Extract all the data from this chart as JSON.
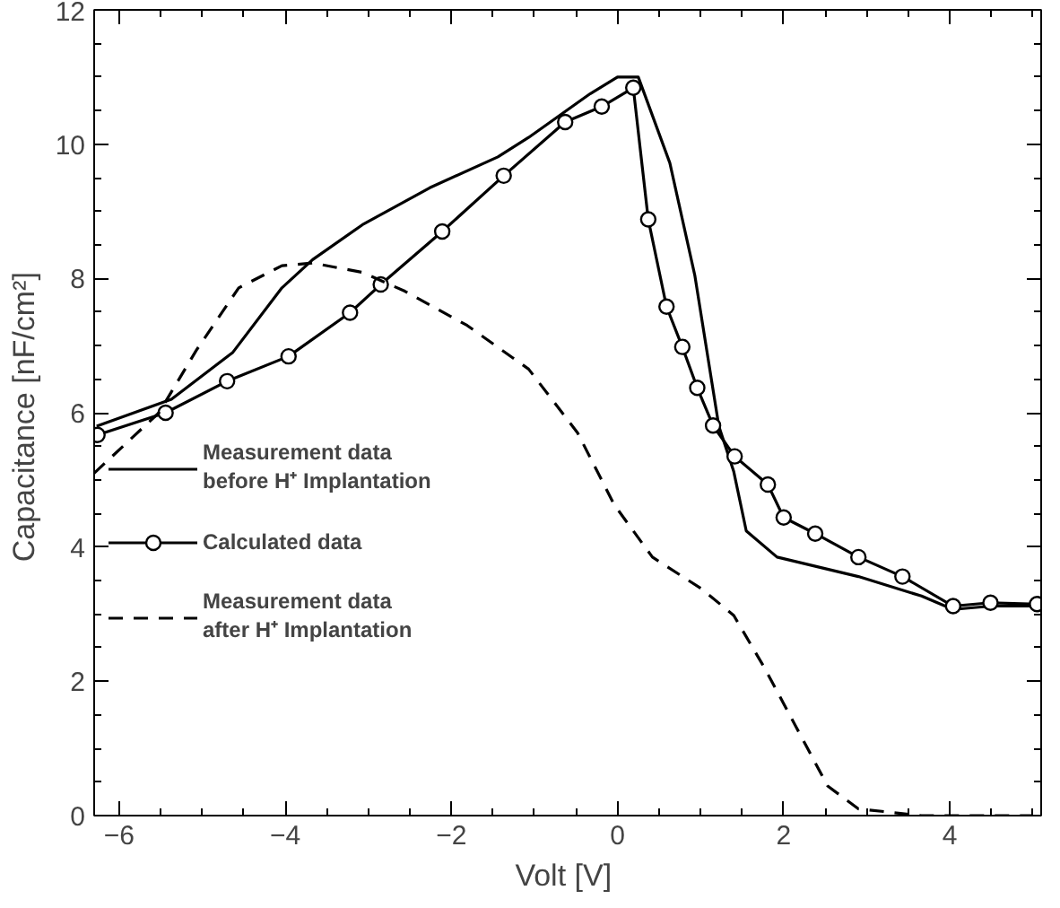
{
  "chart_data": {
    "type": "line",
    "xlabel": "Volt  [V]",
    "ylabel": "Capacitance  [nF/cm²]",
    "xlim": [
      -6.3,
      5.1
    ],
    "ylim": [
      0,
      12
    ],
    "xticks": [
      -6,
      -4,
      -2,
      0,
      2,
      4
    ],
    "yticks": [
      0,
      2,
      4,
      6,
      8,
      10,
      12
    ],
    "grid": false,
    "legend": "left",
    "series": [
      {
        "name": "Measurement data\nbefore H⁺ Implantation",
        "color": "#000000",
        "line_style": "solid",
        "marker": "none",
        "x": [
          -6.27,
          -5.37,
          -4.63,
          -4.04,
          -3.67,
          -3.07,
          -2.26,
          -1.44,
          -1.07,
          -0.33,
          0,
          0.25,
          0.63,
          0.93,
          1.22,
          1.4,
          1.55,
          1.92,
          2.9,
          3.66,
          4.04,
          4.5,
          5.05
        ],
        "values": [
          5.8,
          6.2,
          6.9,
          7.86,
          8.28,
          8.8,
          9.35,
          9.81,
          10.1,
          10.75,
          11.0,
          11.0,
          9.72,
          8.05,
          5.8,
          5.12,
          4.24,
          3.85,
          3.56,
          3.27,
          3.07,
          3.12,
          3.12
        ]
      },
      {
        "name": "Calculated data",
        "color": "#000000",
        "line_style": "solid",
        "marker": "circle",
        "x": [
          -6.26,
          -5.44,
          -4.7,
          -3.96,
          -3.22,
          -2.85,
          -2.11,
          -1.37,
          -0.63,
          -0.19,
          0.19,
          0.37,
          0.59,
          0.78,
          0.96,
          1.15,
          1.41,
          1.81,
          2.0,
          2.38,
          2.9,
          3.43,
          4.04,
          4.49,
          5.05
        ],
        "values": [
          5.67,
          6.0,
          6.47,
          6.84,
          7.49,
          7.91,
          8.7,
          9.53,
          10.33,
          10.56,
          10.84,
          8.88,
          7.58,
          6.98,
          6.37,
          5.81,
          5.35,
          4.93,
          4.44,
          4.2,
          3.85,
          3.56,
          3.12,
          3.17,
          3.15
        ]
      },
      {
        "name": "Measurement data\nafter H⁺ Implantation",
        "color": "#000000",
        "line_style": "dashed",
        "marker": "none",
        "x": [
          -6.3,
          -5.52,
          -5.07,
          -4.56,
          -4.04,
          -3.67,
          -3.07,
          -2.56,
          -1.81,
          -1.07,
          -0.48,
          -0.04,
          0.42,
          1.02,
          1.4,
          1.77,
          2.15,
          2.53,
          2.9,
          3.66,
          5.0
        ],
        "values": [
          5.1,
          6.0,
          6.93,
          7.86,
          8.19,
          8.23,
          8.09,
          7.81,
          7.3,
          6.65,
          5.7,
          4.63,
          3.85,
          3.37,
          2.98,
          2.2,
          1.32,
          0.44,
          0.1,
          0.0,
          0.0
        ]
      }
    ]
  }
}
